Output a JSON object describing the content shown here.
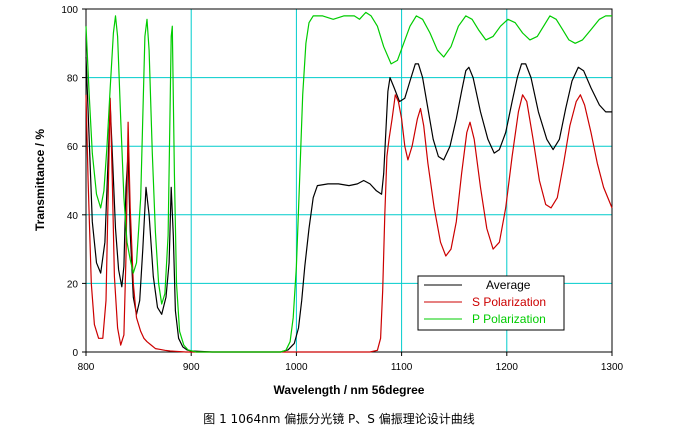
{
  "caption": "图 1 1064nm 偏振分光镜 P、S 偏振理论设计曲线",
  "chart_data": {
    "type": "line",
    "xlabel": "Wavelength / nm 56degree",
    "ylabel": "Transmittance / %",
    "xlim": [
      800,
      1300
    ],
    "ylim": [
      0,
      100
    ],
    "xticks": [
      800,
      900,
      1000,
      1100,
      1200,
      1300
    ],
    "yticks": [
      0,
      20,
      40,
      60,
      80,
      100
    ],
    "grid": true,
    "grid_color": "#00cccc",
    "legend_position": "lower-right",
    "series": [
      {
        "name": "Average",
        "color": "#000000",
        "points": [
          [
            800,
            86
          ],
          [
            803,
            62
          ],
          [
            806,
            38
          ],
          [
            810,
            26
          ],
          [
            814,
            23
          ],
          [
            818,
            32
          ],
          [
            821,
            56
          ],
          [
            823,
            72
          ],
          [
            825,
            58
          ],
          [
            828,
            36
          ],
          [
            831,
            24
          ],
          [
            834,
            19
          ],
          [
            836,
            25
          ],
          [
            838,
            48
          ],
          [
            840,
            58
          ],
          [
            842,
            35
          ],
          [
            845,
            16
          ],
          [
            848,
            11
          ],
          [
            851,
            15
          ],
          [
            854,
            30
          ],
          [
            857,
            48
          ],
          [
            860,
            40
          ],
          [
            864,
            22
          ],
          [
            868,
            13
          ],
          [
            872,
            11
          ],
          [
            876,
            16
          ],
          [
            879,
            26
          ],
          [
            881,
            48
          ],
          [
            883,
            34
          ],
          [
            885,
            12
          ],
          [
            888,
            4
          ],
          [
            892,
            1.5
          ],
          [
            896,
            0.6
          ],
          [
            900,
            0.3
          ],
          [
            920,
            0
          ],
          [
            985,
            0
          ],
          [
            992,
            0.6
          ],
          [
            998,
            2.5
          ],
          [
            1002,
            7
          ],
          [
            1005,
            15
          ],
          [
            1008,
            25
          ],
          [
            1012,
            36
          ],
          [
            1016,
            45
          ],
          [
            1020,
            48.5
          ],
          [
            1030,
            49
          ],
          [
            1040,
            49
          ],
          [
            1050,
            48.5
          ],
          [
            1058,
            49
          ],
          [
            1064,
            50
          ],
          [
            1070,
            49
          ],
          [
            1076,
            47
          ],
          [
            1081,
            46
          ],
          [
            1083,
            52
          ],
          [
            1085,
            64
          ],
          [
            1087,
            76
          ],
          [
            1089,
            80
          ],
          [
            1093,
            77
          ],
          [
            1098,
            73
          ],
          [
            1103,
            74
          ],
          [
            1108,
            79
          ],
          [
            1113,
            84
          ],
          [
            1116,
            84
          ],
          [
            1120,
            80
          ],
          [
            1125,
            71
          ],
          [
            1130,
            62
          ],
          [
            1135,
            57
          ],
          [
            1140,
            56
          ],
          [
            1146,
            60
          ],
          [
            1152,
            68
          ],
          [
            1157,
            76
          ],
          [
            1161,
            82
          ],
          [
            1164,
            83
          ],
          [
            1168,
            80
          ],
          [
            1175,
            70
          ],
          [
            1182,
            62
          ],
          [
            1188,
            58
          ],
          [
            1193,
            59
          ],
          [
            1199,
            64
          ],
          [
            1205,
            73
          ],
          [
            1210,
            80
          ],
          [
            1214,
            84
          ],
          [
            1218,
            84
          ],
          [
            1223,
            80
          ],
          [
            1230,
            70
          ],
          [
            1238,
            62
          ],
          [
            1244,
            59
          ],
          [
            1250,
            62
          ],
          [
            1256,
            71
          ],
          [
            1262,
            79
          ],
          [
            1268,
            83
          ],
          [
            1273,
            82
          ],
          [
            1280,
            77
          ],
          [
            1288,
            72
          ],
          [
            1294,
            70
          ],
          [
            1300,
            70
          ]
        ]
      },
      {
        "name": "S Polarization",
        "color": "#cc0000",
        "points": [
          [
            800,
            75
          ],
          [
            802,
            50
          ],
          [
            805,
            20
          ],
          [
            808,
            8
          ],
          [
            812,
            4
          ],
          [
            816,
            4
          ],
          [
            819,
            15
          ],
          [
            821,
            45
          ],
          [
            823,
            74
          ],
          [
            825,
            50
          ],
          [
            827,
            22
          ],
          [
            830,
            7
          ],
          [
            833,
            2
          ],
          [
            836,
            5
          ],
          [
            838,
            28
          ],
          [
            840,
            67
          ],
          [
            842,
            42
          ],
          [
            845,
            20
          ],
          [
            848,
            10
          ],
          [
            852,
            6
          ],
          [
            855,
            4
          ],
          [
            858,
            3
          ],
          [
            862,
            2
          ],
          [
            866,
            1
          ],
          [
            870,
            0.8
          ],
          [
            875,
            0.5
          ],
          [
            880,
            0.3
          ],
          [
            885,
            0.2
          ],
          [
            895,
            0
          ],
          [
            1000,
            0
          ],
          [
            1070,
            0
          ],
          [
            1077,
            0.5
          ],
          [
            1080,
            4
          ],
          [
            1082,
            18
          ],
          [
            1084,
            40
          ],
          [
            1086,
            57
          ],
          [
            1088,
            62
          ],
          [
            1091,
            68
          ],
          [
            1094,
            75
          ],
          [
            1097,
            73
          ],
          [
            1100,
            68
          ],
          [
            1103,
            60
          ],
          [
            1106,
            56
          ],
          [
            1110,
            60
          ],
          [
            1115,
            68
          ],
          [
            1118,
            71
          ],
          [
            1121,
            66
          ],
          [
            1125,
            55
          ],
          [
            1131,
            42
          ],
          [
            1137,
            32
          ],
          [
            1142,
            28
          ],
          [
            1147,
            30
          ],
          [
            1152,
            38
          ],
          [
            1157,
            52
          ],
          [
            1162,
            64
          ],
          [
            1165,
            67
          ],
          [
            1169,
            62
          ],
          [
            1175,
            48
          ],
          [
            1181,
            36
          ],
          [
            1187,
            30
          ],
          [
            1193,
            32
          ],
          [
            1199,
            42
          ],
          [
            1205,
            57
          ],
          [
            1211,
            70
          ],
          [
            1215,
            75
          ],
          [
            1219,
            73
          ],
          [
            1225,
            62
          ],
          [
            1231,
            50
          ],
          [
            1237,
            43
          ],
          [
            1242,
            42
          ],
          [
            1248,
            45
          ],
          [
            1254,
            55
          ],
          [
            1260,
            66
          ],
          [
            1266,
            73
          ],
          [
            1270,
            75
          ],
          [
            1274,
            72
          ],
          [
            1280,
            64
          ],
          [
            1286,
            55
          ],
          [
            1292,
            48
          ],
          [
            1300,
            42
          ]
        ]
      },
      {
        "name": "P Polarization",
        "color": "#00cc00",
        "points": [
          [
            800,
            95
          ],
          [
            803,
            75
          ],
          [
            806,
            58
          ],
          [
            810,
            46
          ],
          [
            814,
            42
          ],
          [
            817,
            47
          ],
          [
            820,
            60
          ],
          [
            823,
            77
          ],
          [
            826,
            93
          ],
          [
            828,
            98
          ],
          [
            830,
            92
          ],
          [
            833,
            68
          ],
          [
            836,
            45
          ],
          [
            839,
            32
          ],
          [
            842,
            27
          ],
          [
            845,
            23
          ],
          [
            848,
            26
          ],
          [
            852,
            45
          ],
          [
            856,
            92
          ],
          [
            858,
            97
          ],
          [
            860,
            88
          ],
          [
            863,
            58
          ],
          [
            866,
            35
          ],
          [
            869,
            20
          ],
          [
            872,
            14
          ],
          [
            875,
            17
          ],
          [
            878,
            34
          ],
          [
            881,
            92
          ],
          [
            882,
            95
          ],
          [
            884,
            52
          ],
          [
            886,
            20
          ],
          [
            889,
            6
          ],
          [
            893,
            2
          ],
          [
            897,
            0.6
          ],
          [
            905,
            0
          ],
          [
            985,
            0
          ],
          [
            990,
            0.5
          ],
          [
            994,
            3
          ],
          [
            997,
            10
          ],
          [
            1000,
            25
          ],
          [
            1003,
            50
          ],
          [
            1006,
            75
          ],
          [
            1009,
            90
          ],
          [
            1012,
            96
          ],
          [
            1016,
            98
          ],
          [
            1025,
            98
          ],
          [
            1035,
            97
          ],
          [
            1045,
            98
          ],
          [
            1055,
            98
          ],
          [
            1060,
            97
          ],
          [
            1066,
            99
          ],
          [
            1071,
            98
          ],
          [
            1077,
            95
          ],
          [
            1083,
            89
          ],
          [
            1090,
            84
          ],
          [
            1096,
            85
          ],
          [
            1102,
            90
          ],
          [
            1108,
            95
          ],
          [
            1114,
            98
          ],
          [
            1120,
            97
          ],
          [
            1127,
            93
          ],
          [
            1134,
            88
          ],
          [
            1140,
            86
          ],
          [
            1147,
            89
          ],
          [
            1154,
            95
          ],
          [
            1161,
            98
          ],
          [
            1167,
            97
          ],
          [
            1173,
            94
          ],
          [
            1180,
            91
          ],
          [
            1187,
            92
          ],
          [
            1194,
            95
          ],
          [
            1201,
            97
          ],
          [
            1208,
            96
          ],
          [
            1215,
            93
          ],
          [
            1222,
            91
          ],
          [
            1229,
            92
          ],
          [
            1235,
            95
          ],
          [
            1241,
            98
          ],
          [
            1247,
            97
          ],
          [
            1253,
            94
          ],
          [
            1259,
            91
          ],
          [
            1265,
            90
          ],
          [
            1272,
            91
          ],
          [
            1280,
            94
          ],
          [
            1288,
            97
          ],
          [
            1294,
            98
          ],
          [
            1300,
            98
          ]
        ]
      }
    ]
  }
}
